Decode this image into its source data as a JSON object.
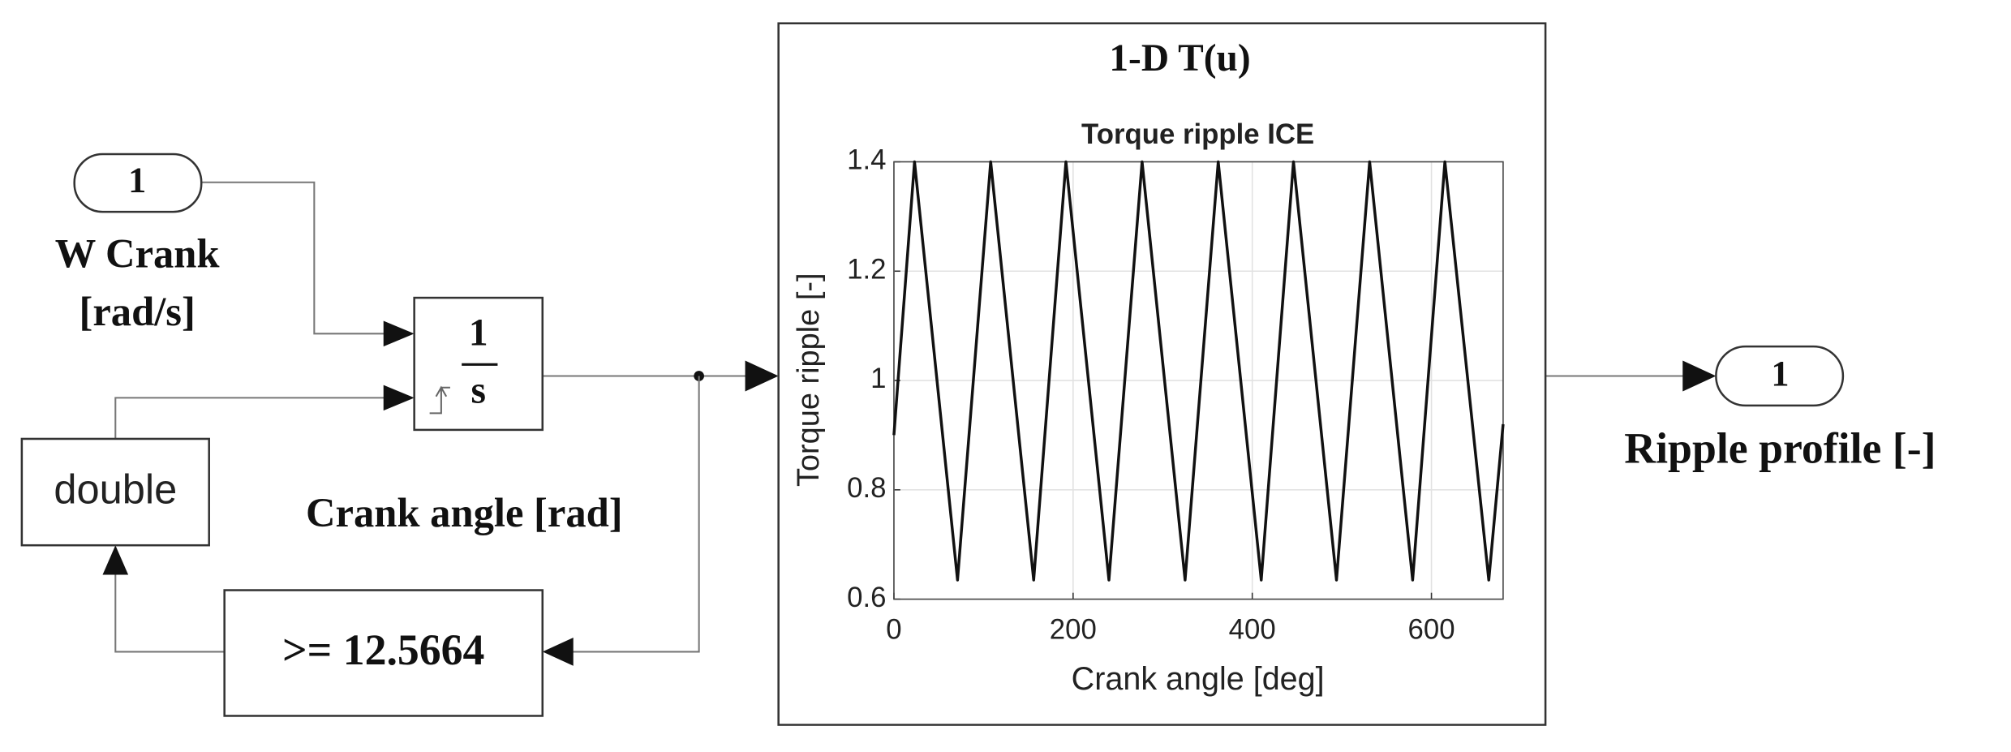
{
  "inport": {
    "number": "1",
    "label_lines": [
      "W Crank",
      "[rad/s]"
    ]
  },
  "integrator": {
    "numerator": "1",
    "denominator": "s"
  },
  "convert_block": {
    "label": "double"
  },
  "signal_label": "Crank angle [rad]",
  "compare_block": {
    "label": ">= 12.5664"
  },
  "lookup_block": {
    "title": "1-D T(u)"
  },
  "outport": {
    "number": "1",
    "label": "Ripple profile [-]"
  },
  "chart_data": {
    "type": "line",
    "title": "Torque ripple ICE",
    "x_label": "Crank angle [deg]",
    "y_label": "Torque ripple [-]",
    "x": [
      0,
      23,
      71,
      108,
      156,
      192,
      240,
      277,
      325,
      362,
      410,
      446,
      494,
      531,
      579,
      615,
      664,
      680
    ],
    "values": [
      0.9,
      1.4,
      0.635,
      1.4,
      0.635,
      1.4,
      0.635,
      1.4,
      0.635,
      1.4,
      0.635,
      1.4,
      0.635,
      1.4,
      0.635,
      1.4,
      0.635,
      0.92
    ],
    "color": "#111111",
    "xlim": [
      0,
      680
    ],
    "ylim": [
      0.6,
      1.4
    ],
    "xticks": [
      0,
      200,
      400,
      600
    ],
    "yticks": [
      0.6,
      0.8,
      1,
      1.2,
      1.4
    ],
    "grid": true
  }
}
